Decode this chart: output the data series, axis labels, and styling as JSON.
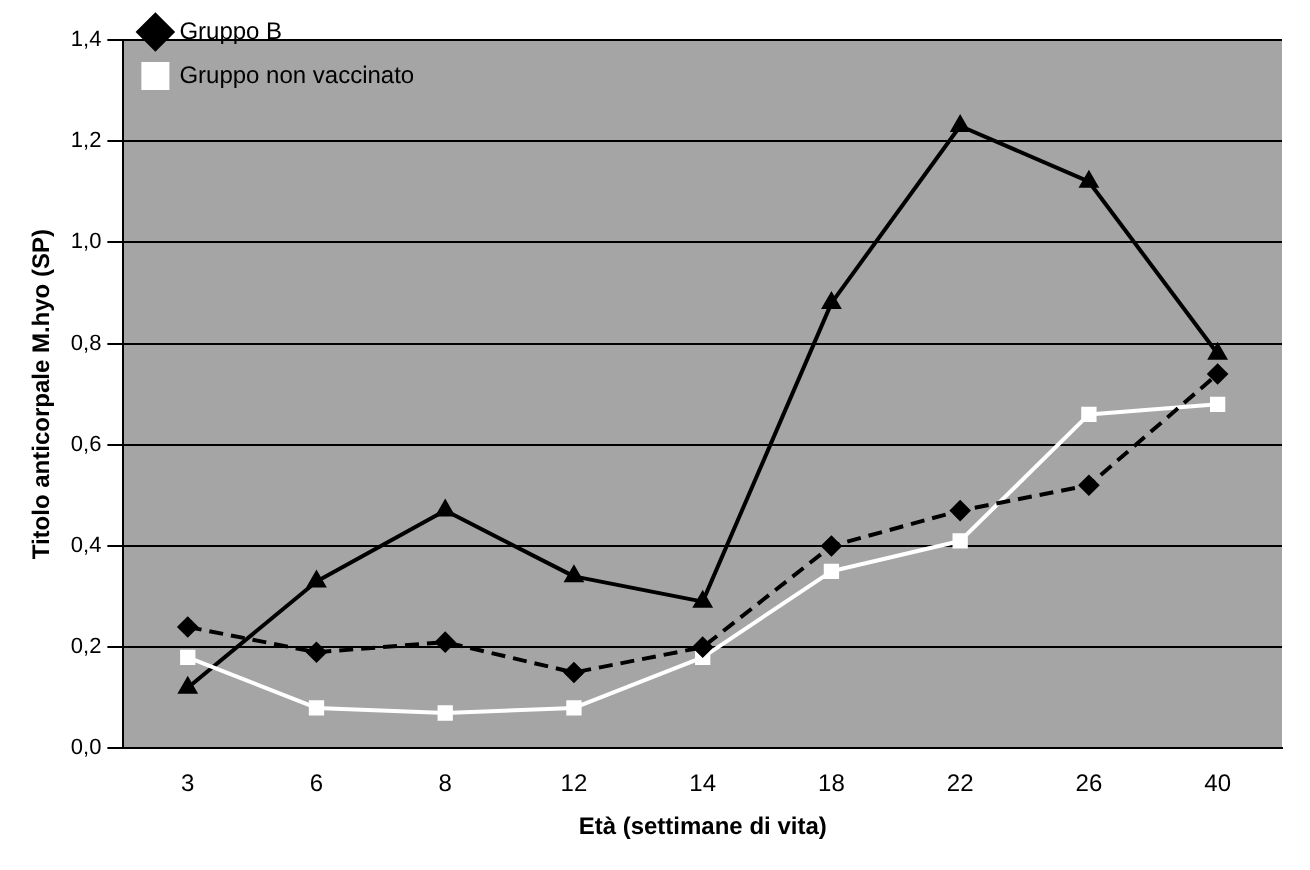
{
  "chart_data": {
    "type": "line",
    "xlabel": "Età (settimane di vita)",
    "ylabel": "Titolo anticorpale M.hyo (SP)",
    "categories": [
      "3",
      "6",
      "8",
      "12",
      "14",
      "18",
      "22",
      "26",
      "40"
    ],
    "series": [
      {
        "name": "Gruppo B",
        "color": "#000000",
        "marker": "diamond",
        "line_style": "dashed",
        "values": [
          0.24,
          0.19,
          0.21,
          0.15,
          0.2,
          0.4,
          0.47,
          0.52,
          0.74
        ]
      },
      {
        "name": "Gruppo non vaccinato",
        "color": "#ffffff",
        "marker": "square",
        "line_style": "solid",
        "values": [
          0.18,
          0.08,
          0.07,
          0.08,
          0.18,
          0.35,
          0.41,
          0.66,
          0.68
        ]
      },
      {
        "color": "#000000",
        "marker": "triangle",
        "line_style": "solid",
        "values": [
          0.12,
          0.33,
          0.47,
          0.34,
          0.29,
          0.88,
          1.23,
          1.12,
          0.78
        ]
      }
    ],
    "ylim": [
      0,
      1.4
    ],
    "yticks": [
      {
        "value": 0,
        "label": "0,0"
      },
      {
        "value": 0.2,
        "label": "0,2"
      },
      {
        "value": 0.4,
        "label": "0,4"
      },
      {
        "value": 0.6,
        "label": "0,6"
      },
      {
        "value": 0.8,
        "label": "0,8"
      },
      {
        "value": 1.0,
        "label": "1,0"
      },
      {
        "value": 1.2,
        "label": "1,2"
      },
      {
        "value": 1.4,
        "label": "1,4"
      }
    ],
    "grid": "y",
    "legend": "top left"
  }
}
